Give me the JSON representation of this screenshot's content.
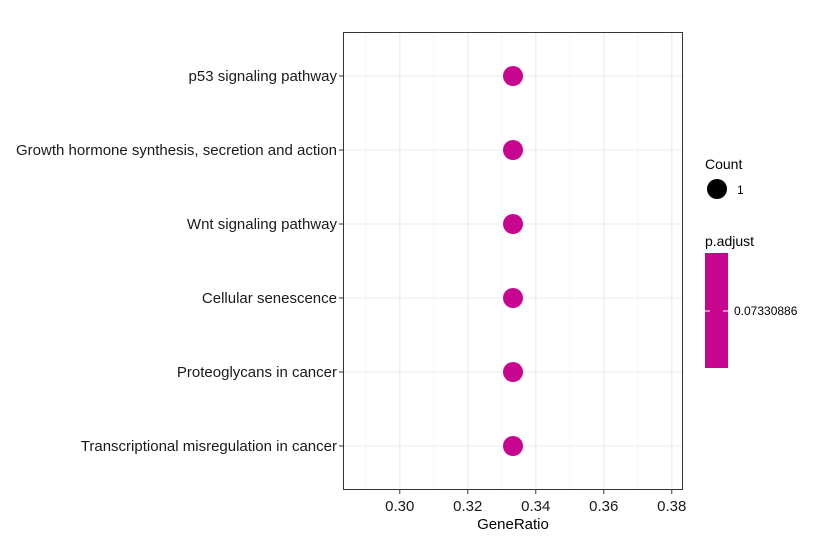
{
  "chart_data": {
    "type": "scatter",
    "title": "",
    "xlabel": "GeneRatio",
    "ylabel": "",
    "xlim": [
      0.2833,
      0.3833
    ],
    "x_ticks": [
      "0.30",
      "0.32",
      "0.34",
      "0.36",
      "0.38"
    ],
    "x_tick_values": [
      0.3,
      0.32,
      0.34,
      0.36,
      0.38
    ],
    "grid": true,
    "categories": [
      "p53 signaling pathway",
      "Growth hormone synthesis, secretion and action",
      "Wnt signaling pathway",
      "Cellular senescence",
      "Proteoglycans in cancer",
      "Transcriptional misregulation in cancer"
    ],
    "points": [
      {
        "category": "p53 signaling pathway",
        "gene_ratio": 0.3333,
        "count": 1,
        "p_adjust": 0.07330886
      },
      {
        "category": "Growth hormone synthesis, secretion and action",
        "gene_ratio": 0.3333,
        "count": 1,
        "p_adjust": 0.07330886
      },
      {
        "category": "Wnt signaling pathway",
        "gene_ratio": 0.3333,
        "count": 1,
        "p_adjust": 0.07330886
      },
      {
        "category": "Cellular senescence",
        "gene_ratio": 0.3333,
        "count": 1,
        "p_adjust": 0.07330886
      },
      {
        "category": "Proteoglycans in cancer",
        "gene_ratio": 0.3333,
        "count": 1,
        "p_adjust": 0.07330886
      },
      {
        "category": "Transcriptional misregulation in cancer",
        "gene_ratio": 0.3333,
        "count": 1,
        "p_adjust": 0.07330886
      }
    ],
    "point_color": "#c8058e",
    "legend": {
      "placement": "right",
      "size_title": "Count",
      "size_entries": [
        "1"
      ],
      "color_title": "p.adjust",
      "color_entries": [
        "0.07330886"
      ],
      "color_bar_color": "#c8058e"
    }
  }
}
